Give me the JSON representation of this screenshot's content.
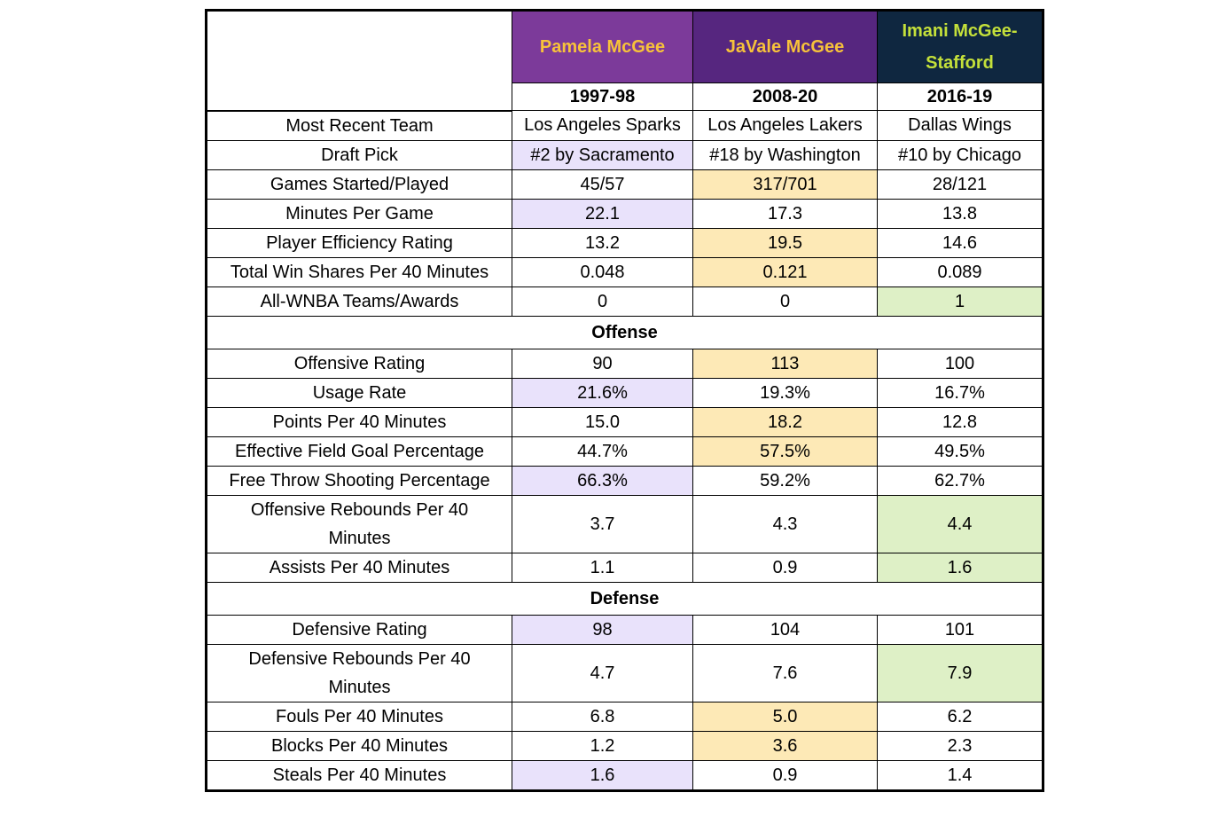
{
  "header": {
    "players": [
      "Pamela McGee",
      "JaVale McGee",
      "Imani McGee-Stafford"
    ],
    "years": [
      "1997-98",
      "2008-20",
      "2016-19"
    ]
  },
  "rows_general": [
    {
      "metric": "Most Recent Team",
      "values": [
        "Los Angeles Sparks",
        "Los Angeles Lakers",
        "Dallas Wings"
      ]
    },
    {
      "metric": "Draft Pick",
      "values": [
        "#2 by Sacramento",
        "#18 by Washington",
        "#10 by Chicago"
      ]
    },
    {
      "metric": "Games Started/Played",
      "values": [
        "45/57",
        "317/701",
        "28/121"
      ]
    },
    {
      "metric": "Minutes Per Game",
      "values": [
        "22.1",
        "17.3",
        "13.8"
      ]
    },
    {
      "metric": "Player Efficiency Rating",
      "values": [
        "13.2",
        "19.5",
        "14.6"
      ]
    },
    {
      "metric": "Total Win Shares Per 40 Minutes",
      "values": [
        "0.048",
        "0.121",
        "0.089"
      ]
    },
    {
      "metric": "All-WNBA Teams/Awards",
      "values": [
        "0",
        "0",
        "1"
      ]
    }
  ],
  "section_offense": "Offense",
  "rows_offense": [
    {
      "metric": "Offensive Rating",
      "values": [
        "90",
        "113",
        "100"
      ]
    },
    {
      "metric": "Usage Rate",
      "values": [
        "21.6%",
        "19.3%",
        "16.7%"
      ]
    },
    {
      "metric": "Points Per 40 Minutes",
      "values": [
        "15.0",
        "18.2",
        "12.8"
      ]
    },
    {
      "metric": "Effective Field Goal Percentage",
      "values": [
        "44.7%",
        "57.5%",
        "49.5%"
      ]
    },
    {
      "metric": "Free Throw Shooting Percentage",
      "values": [
        "66.3%",
        "59.2%",
        "62.7%"
      ]
    },
    {
      "metric": "Offensive Rebounds Per 40 Minutes",
      "values": [
        "3.7",
        "4.3",
        "4.4"
      ]
    },
    {
      "metric": "Assists Per 40 Minutes",
      "values": [
        "1.1",
        "0.9",
        "1.6"
      ]
    }
  ],
  "section_defense": "Defense",
  "rows_defense": [
    {
      "metric": "Defensive Rating",
      "values": [
        "98",
        "104",
        "101"
      ]
    },
    {
      "metric": "Defensive Rebounds Per 40 Minutes",
      "values": [
        "4.7",
        "7.6",
        "7.9"
      ]
    },
    {
      "metric": "Fouls Per 40 Minutes",
      "values": [
        "6.8",
        "5.0",
        "6.2"
      ]
    },
    {
      "metric": "Blocks Per 40 Minutes",
      "values": [
        "1.2",
        "3.6",
        "2.3"
      ]
    },
    {
      "metric": "Steals Per 40 Minutes",
      "values": [
        "1.6",
        "0.9",
        "1.4"
      ]
    }
  ],
  "highlight_colors": {
    "pamela": "#e9e2fb",
    "javale": "#fde9b6",
    "imani": "#def0c6"
  }
}
